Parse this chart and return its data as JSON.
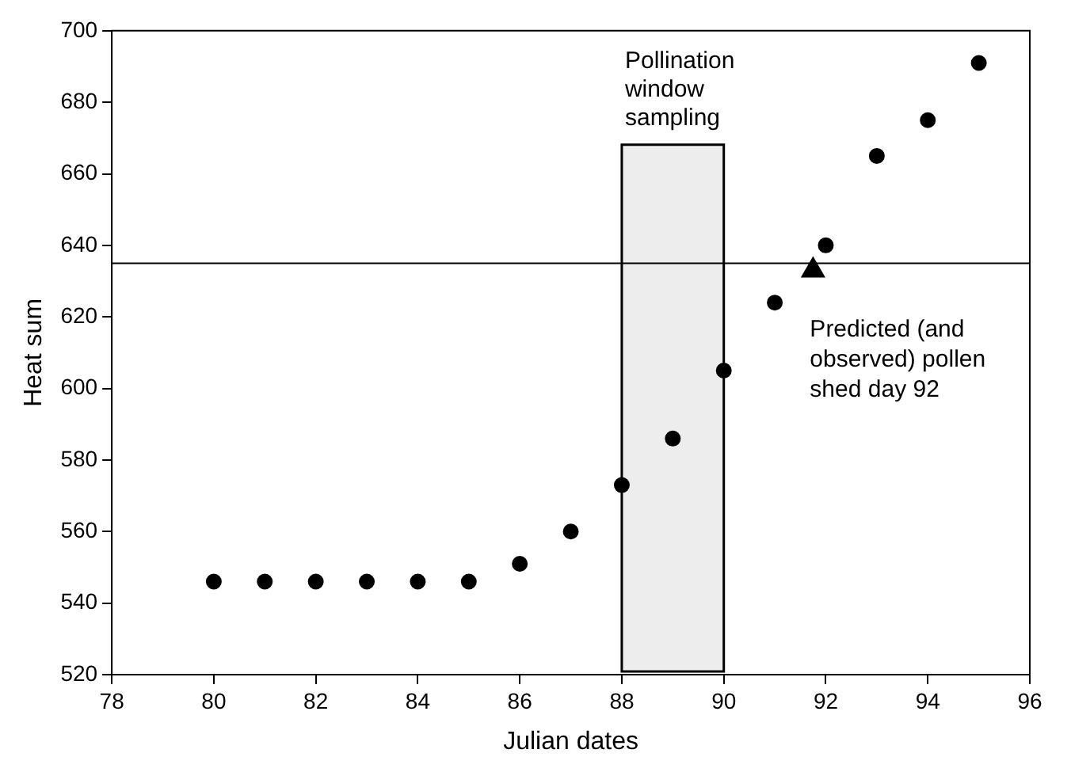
{
  "chart_data": {
    "type": "scatter",
    "xlabel": "Julian dates",
    "ylabel": "Heat sum",
    "xlim": [
      78,
      96
    ],
    "xticks": [
      78,
      80,
      82,
      84,
      86,
      88,
      90,
      92,
      94,
      96
    ],
    "ylim": [
      520,
      700
    ],
    "yticks": [
      520,
      540,
      560,
      580,
      600,
      620,
      640,
      660,
      680,
      700
    ],
    "grid": false,
    "legend": false,
    "series": [
      {
        "color": "#000000",
        "marker": "circle",
        "x": [
          80,
          81,
          82,
          83,
          84,
          85,
          86,
          87,
          88,
          89,
          90,
          91,
          92,
          93,
          94,
          95
        ],
        "values": [
          546,
          546,
          546,
          546,
          546,
          546,
          551,
          560,
          573,
          586,
          605,
          624,
          640,
          665,
          675,
          691
        ]
      },
      {
        "color": "#000000",
        "marker": "triangle",
        "x": [
          91.75
        ],
        "values": [
          633
        ]
      }
    ],
    "ref_lines": [
      {
        "axis": "y",
        "value": 635,
        "color": "#000000"
      }
    ],
    "bands": [
      {
        "axis": "x",
        "from": 88,
        "to": 90,
        "label": "Pollination window sampling",
        "color": "#000000"
      }
    ],
    "annotations": [
      {
        "text": "Predicted (and observed) pollen shed day 92",
        "x": 91.75,
        "y": 633
      }
    ]
  }
}
